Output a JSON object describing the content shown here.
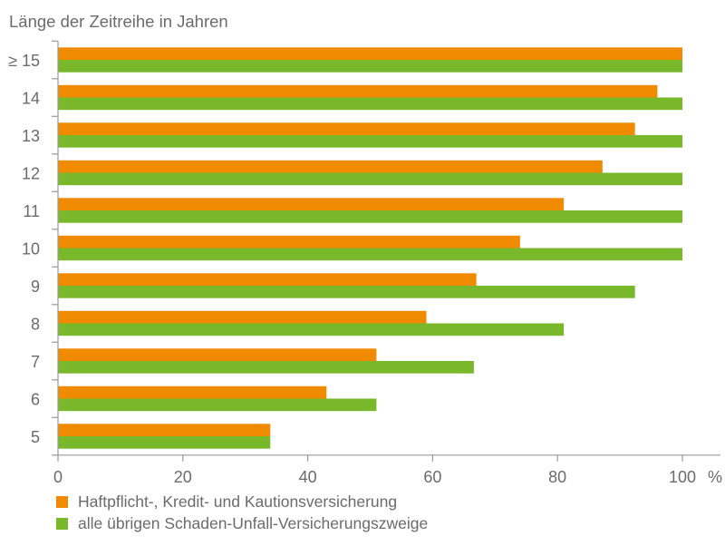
{
  "chart_data": {
    "type": "bar",
    "orientation": "horizontal",
    "title": "",
    "ylabel": "Länge der Zeitreihe in Jahren",
    "xlabel": "%",
    "categories": [
      "≥ 15",
      "14",
      "13",
      "12",
      "11",
      "10",
      "9",
      "8",
      "7",
      "6",
      "5"
    ],
    "series": [
      {
        "name": "Haftpflicht-, Kredit- und Kautionsversicherung",
        "color": "#F08A00",
        "values": [
          100,
          96,
          92.4,
          87.2,
          81,
          74,
          67,
          59,
          51,
          43,
          34
        ]
      },
      {
        "name": "alle übrigen Schaden-Unfall-Versicherungszweige",
        "color": "#78B82A",
        "values": [
          100,
          100,
          100,
          100,
          100,
          100,
          92.4,
          81,
          66.6,
          51,
          34
        ]
      }
    ],
    "xlim": [
      0,
      106
    ],
    "xticks": [
      0,
      20,
      40,
      60,
      80,
      100
    ],
    "xtick_labels": [
      "0",
      "20",
      "40",
      "60",
      "80",
      "100"
    ],
    "x_unit_label": "%",
    "grid": false,
    "legend_position": "bottom-left"
  }
}
